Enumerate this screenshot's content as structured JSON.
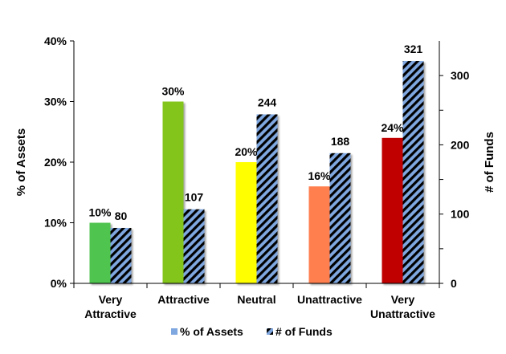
{
  "chart_data": {
    "type": "bar",
    "categories": [
      [
        "Very",
        "Attractive"
      ],
      [
        "Attractive"
      ],
      [
        "Neutral"
      ],
      [
        "Unattractive"
      ],
      [
        "Very",
        "Unattractive"
      ]
    ],
    "series": [
      {
        "name": "% of Assets",
        "axis": "left",
        "values": [
          10,
          30,
          20,
          16,
          24
        ],
        "labels": [
          "10%",
          "30%",
          "20%",
          "16%",
          "24%"
        ],
        "colors": [
          "#4fc44f",
          "#84c51a",
          "#ffff00",
          "#ff7f50",
          "#c00000"
        ]
      },
      {
        "name": "# of Funds",
        "axis": "right",
        "values": [
          80,
          107,
          244,
          188,
          321
        ],
        "labels": [
          "80",
          "107",
          "244",
          "188",
          "321"
        ],
        "pattern": "diagonal-stripes",
        "colors": [
          "#7fa7e0",
          "#000000"
        ]
      }
    ],
    "ylabel": "% of Assets",
    "y2label": "# of Funds",
    "ylim": [
      0,
      40
    ],
    "y2lim": [
      0,
      350
    ],
    "yticks": [
      "0%",
      "10%",
      "20%",
      "30%",
      "40%"
    ],
    "y2ticks": [
      "0",
      "100",
      "200",
      "300"
    ],
    "legend_position": "bottom",
    "grid": false
  }
}
